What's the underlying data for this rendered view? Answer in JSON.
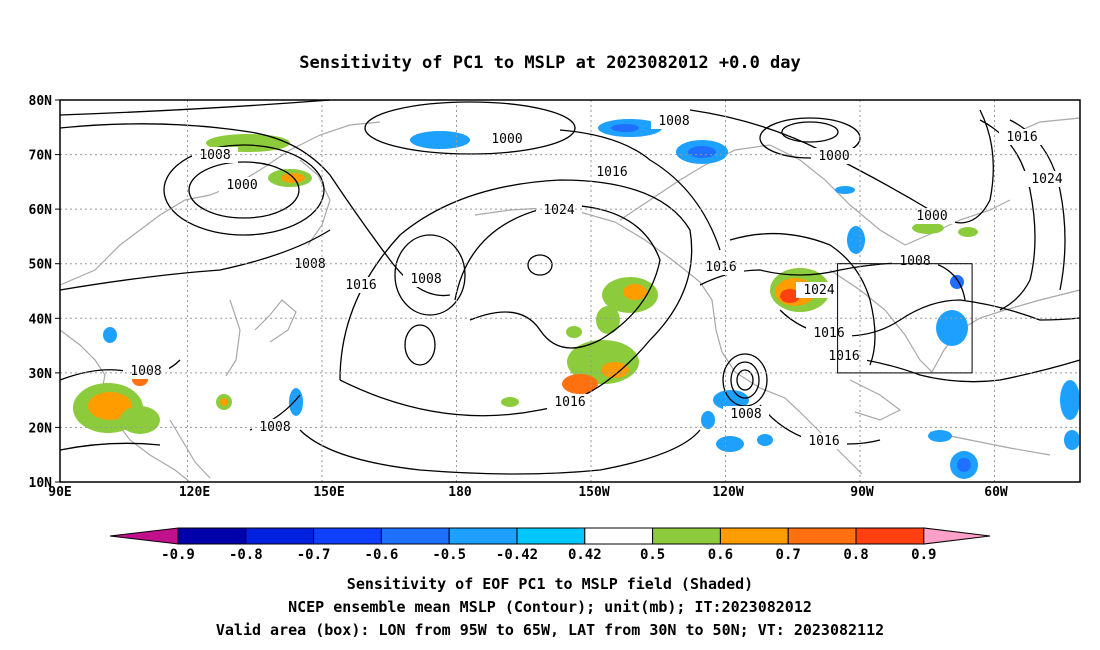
{
  "title": "Sensitivity of PC1 to MSLP at 2023082012 +0.0 day",
  "lat_labels": [
    "80N",
    "70N",
    "60N",
    "50N",
    "40N",
    "30N",
    "20N",
    "10N"
  ],
  "lon_labels": [
    "90E",
    "120E",
    "150E",
    "180",
    "150W",
    "120W",
    "90W",
    "60W"
  ],
  "colorbar": {
    "labels": [
      "-0.9",
      "-0.8",
      "-0.7",
      "-0.6",
      "-0.5",
      "-0.42",
      "0.42",
      "0.5",
      "0.6",
      "0.7",
      "0.8",
      "0.9"
    ],
    "colors": [
      "#c0108c",
      "#0000aa",
      "#0020e0",
      "#1040ff",
      "#2070ff",
      "#1ea0ff",
      "#00c8ff",
      "#ffffff",
      "#8ccc3c",
      "#ff9c00",
      "#ff7010",
      "#ff4010",
      "#ff0000",
      "#ffa0c8"
    ]
  },
  "contour_labels": [
    "1000",
    "1000",
    "1000",
    "1000",
    "1008",
    "1008",
    "1008",
    "1008",
    "1008",
    "1008",
    "1008",
    "1016",
    "1016",
    "1016",
    "1016",
    "1016",
    "1016",
    "1016",
    "1016",
    "1024",
    "1024",
    "1024"
  ],
  "captions": [
    "Sensitivity of EOF PC1 to MSLP field (Shaded)",
    "NCEP ensemble mean MSLP (Contour); unit(mb); IT:2023082012",
    "Valid area (box): LON from 95W to 65W, LAT from 30N to 50N; VT: 2023082112"
  ]
}
